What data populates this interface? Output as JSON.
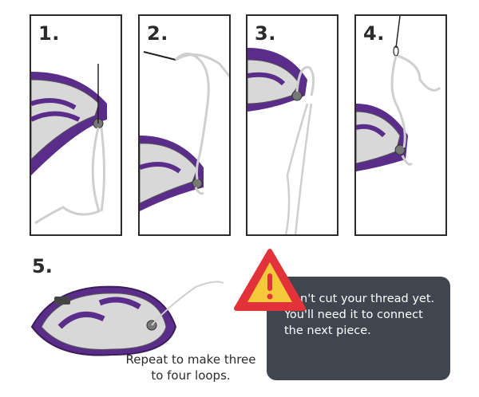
{
  "steps": [
    {
      "number": "1."
    },
    {
      "number": "2."
    },
    {
      "number": "3."
    },
    {
      "number": "4."
    },
    {
      "number": "5."
    }
  ],
  "captions": {
    "repeat": "Repeat to make three to four loops."
  },
  "warning": {
    "icon": "warning-triangle-icon",
    "text": "Don't cut your thread yet. You'll need it to connect the next piece."
  },
  "colors": {
    "board_purple": "#5b2d8a",
    "warning_red": "#e2323a",
    "warning_yellow": "#f6c93b",
    "callout_bg": "#3f4650"
  }
}
